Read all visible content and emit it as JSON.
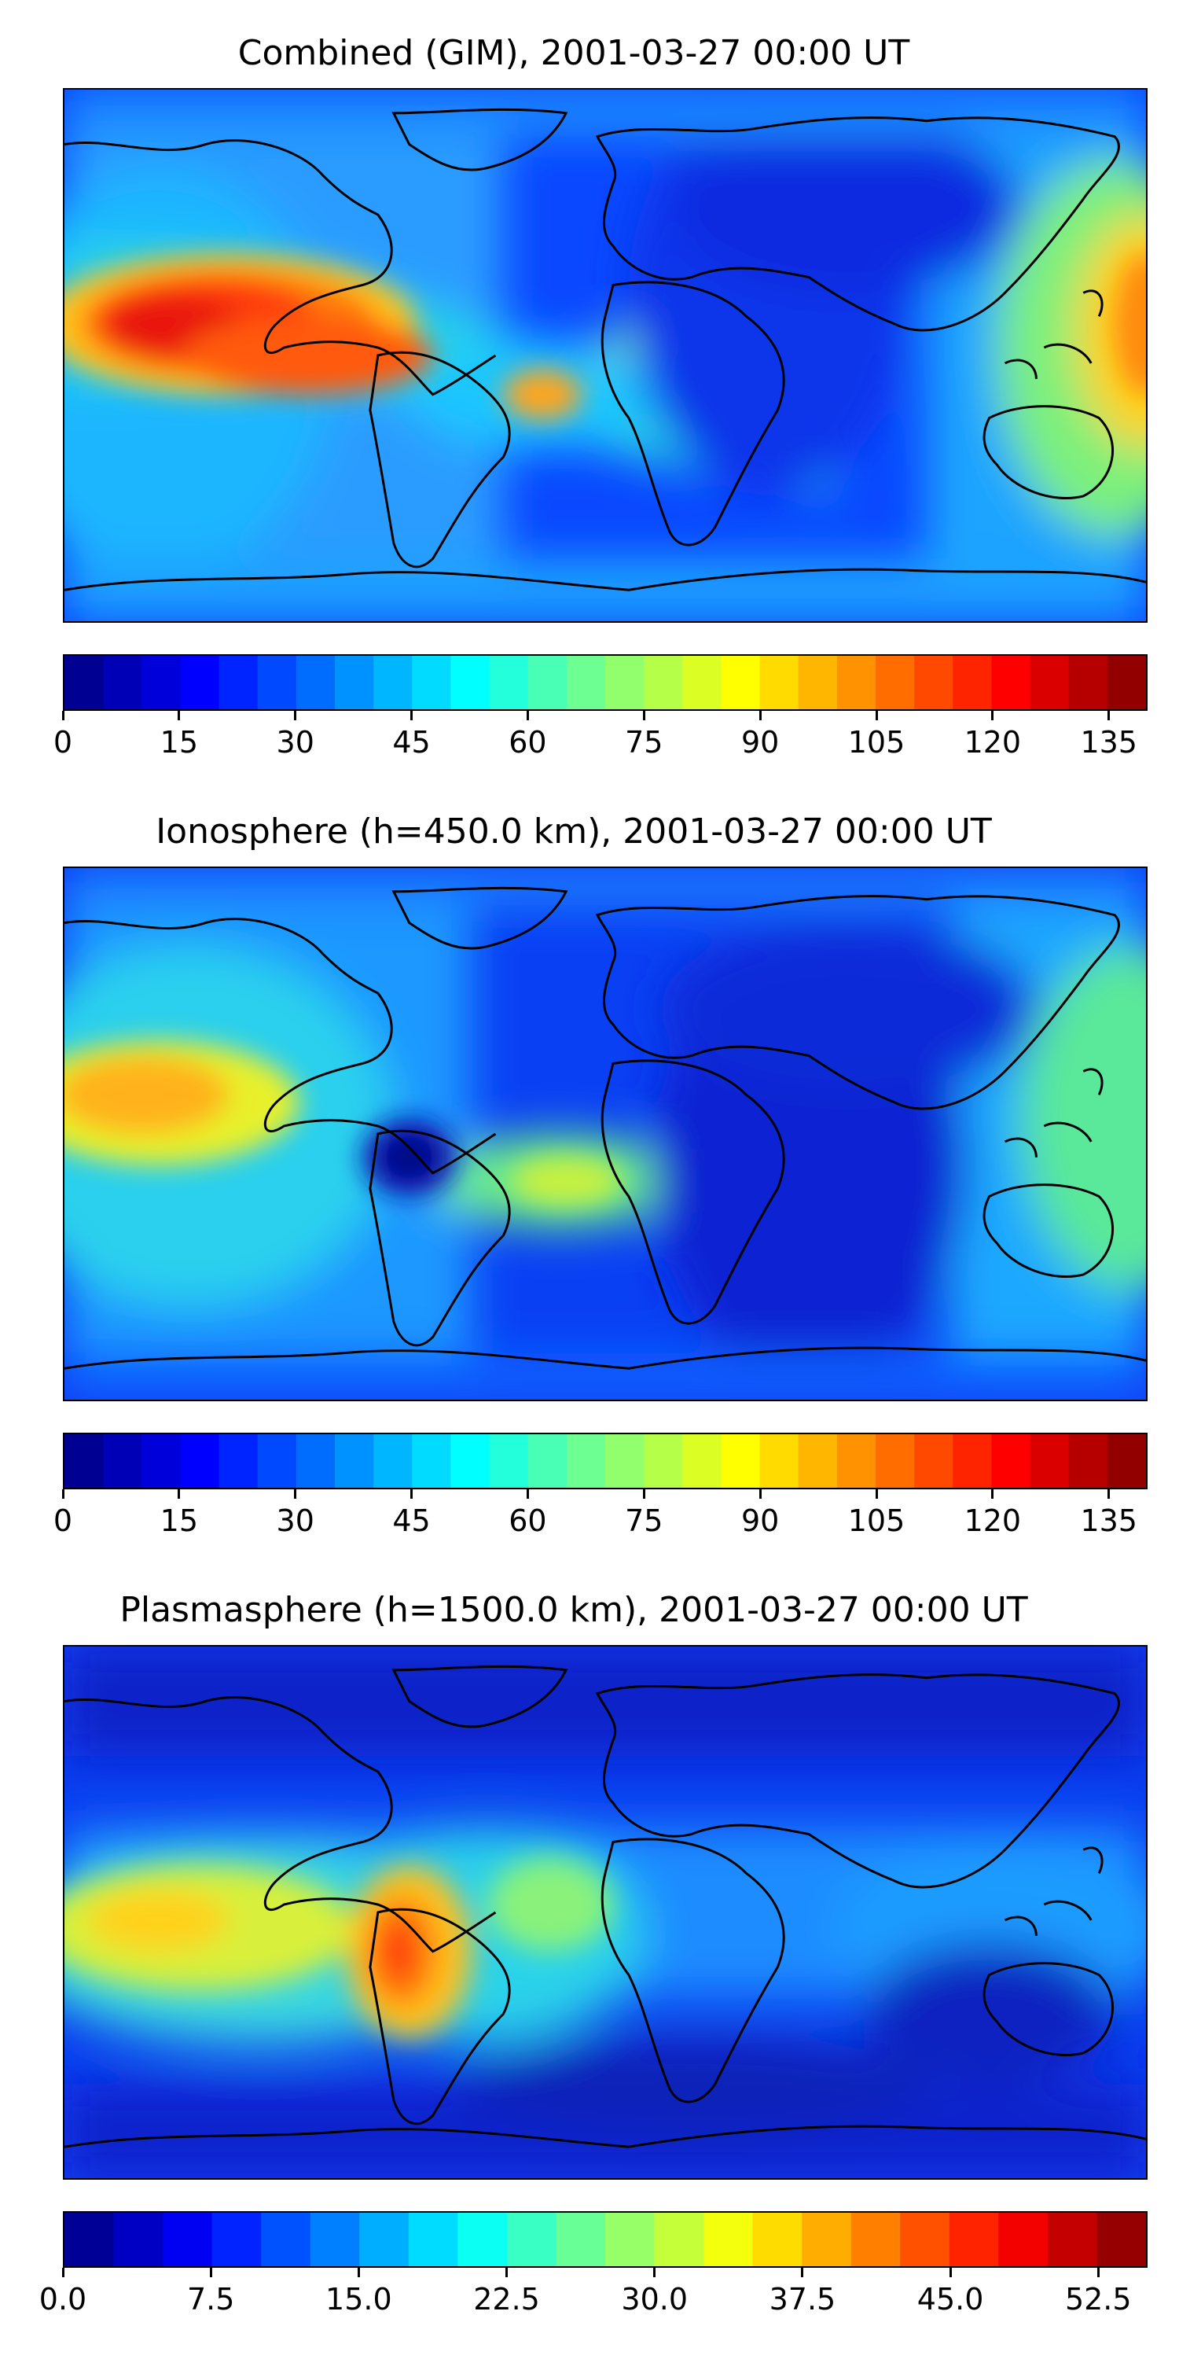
{
  "panels": [
    {
      "title": "Combined (GIM), 2001-03-27 00:00 UT",
      "colorbar": {
        "ticks": [
          "0",
          "15",
          "30",
          "45",
          "60",
          "75",
          "90",
          "105",
          "120",
          "135"
        ],
        "vmin": 0,
        "vmax": 140,
        "step": 5
      },
      "colormap": "jet",
      "features": "high values over eastern Pacific (~135) and western Pacific/Philippines, secondary maximum over South Atlantic; minima over Africa/Indian Ocean and Eurasia"
    },
    {
      "title": "Ionosphere  (h=450.0 km), 2001-03-27 00:00 UT",
      "colorbar": {
        "ticks": [
          "0",
          "15",
          "30",
          "45",
          "60",
          "75",
          "90",
          "105",
          "120",
          "135"
        ],
        "vmin": 0,
        "vmax": 140,
        "step": 5
      },
      "colormap": "jet",
      "features": "maximum over eastern Pacific (~100), minimum over South America and Indian Ocean"
    },
    {
      "title": "Plasmasphere (h=1500.0 km), 2001-03-27 00:00 UT",
      "colorbar": {
        "ticks": [
          "0.0",
          "7.5",
          "15.0",
          "22.5",
          "30.0",
          "37.5",
          "45.0",
          "52.5"
        ],
        "vmin": 0,
        "vmax": 55,
        "step": 2.5
      },
      "colormap": "jet",
      "features": "maximum over central South America (~45), elevated values over eastern Pacific; minima at high latitudes"
    }
  ]
}
